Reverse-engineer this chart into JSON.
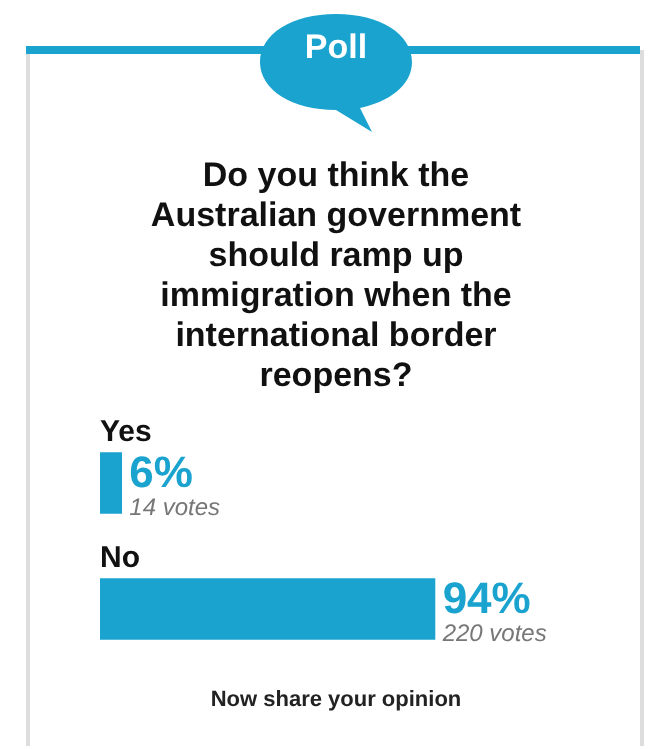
{
  "chart_data": {
    "type": "bar",
    "orientation": "horizontal",
    "title": "Do you think the Australian government should ramp up immigration when the international border reopens?",
    "categories": [
      "Yes",
      "No"
    ],
    "values": [
      6,
      94
    ],
    "color": "#1aa3cf",
    "value_labels": [
      "6%",
      "94%"
    ],
    "tick_labels": false,
    "legend": false,
    "annotations": [
      "Poll",
      "Now share your opinion",
      {
        "text": "14 votes",
        "x": 6,
        "y": "Yes"
      },
      {
        "text": "220 votes",
        "x": 94,
        "y": "No"
      }
    ]
  }
}
